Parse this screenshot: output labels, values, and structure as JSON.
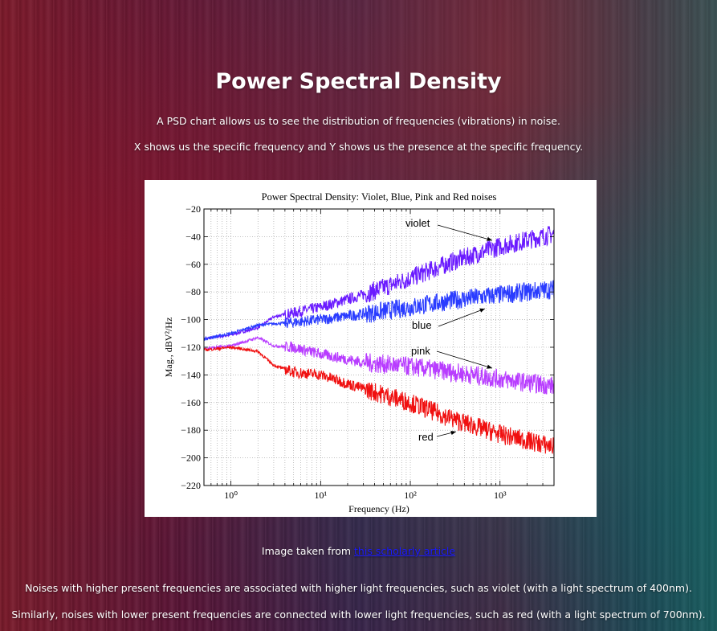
{
  "page": {
    "title": "Power Spectral Density",
    "intro_1": "A PSD chart allows us to see the distribution of frequencies (vibrations) in noise.",
    "intro_2": "X shows us the specific frequency and Y shows us the presence at the specific frequency.",
    "credit_prefix": "Image taken from",
    "credit_link": "this scholarly article",
    "para_1": "Noises with higher present frequencies are associated with higher light frequencies, such as violet (with a light spectrum of 400nm).",
    "para_2": "Similarly, noises with lower present frequencies are connected with lower light frequencies, such as red (with a light spectrum of 700nm).",
    "link_color": "#1a1aff"
  },
  "chart_data": {
    "type": "line",
    "title": "Power Spectral Density: Violet, Blue, Pink and Red noises",
    "xlabel": "Frequency (Hz)",
    "ylabel": "Mag., dBV²/Hz",
    "x_scale": "log",
    "xlim": [
      0.5,
      4000
    ],
    "ylim": [
      -220,
      -20
    ],
    "x_ticks": [
      "10⁰",
      "10¹",
      "10²",
      "10³"
    ],
    "y_ticks": [
      -20,
      -40,
      -60,
      -80,
      -100,
      -120,
      -140,
      -160,
      -180,
      -200,
      -220
    ],
    "grid": true,
    "series": [
      {
        "name": "violet",
        "color": "#6a1aff",
        "x": [
          0.5,
          1,
          2,
          3,
          5,
          10,
          30,
          100,
          300,
          1000,
          4000
        ],
        "y": [
          -114,
          -111,
          -106,
          -98,
          -95,
          -91,
          -82,
          -70,
          -58,
          -47,
          -38
        ]
      },
      {
        "name": "blue",
        "color": "#2a3cff",
        "x": [
          0.5,
          1,
          2,
          3,
          5,
          10,
          30,
          100,
          300,
          1000,
          4000
        ],
        "y": [
          -114,
          -110,
          -104,
          -103,
          -102,
          -100,
          -96,
          -91,
          -86,
          -82,
          -78
        ]
      },
      {
        "name": "pink",
        "color": "#b83cff",
        "x": [
          0.5,
          1,
          2,
          3,
          5,
          10,
          30,
          100,
          300,
          1000,
          4000
        ],
        "y": [
          -121,
          -119,
          -113,
          -119,
          -120,
          -125,
          -131,
          -134,
          -138,
          -143,
          -148
        ]
      },
      {
        "name": "red",
        "color": "#f01010",
        "x": [
          0.5,
          1,
          2,
          3,
          5,
          10,
          30,
          100,
          300,
          1000,
          4000
        ],
        "y": [
          -122,
          -120,
          -123,
          -133,
          -138,
          -140,
          -150,
          -160,
          -172,
          -183,
          -192
        ]
      }
    ]
  }
}
